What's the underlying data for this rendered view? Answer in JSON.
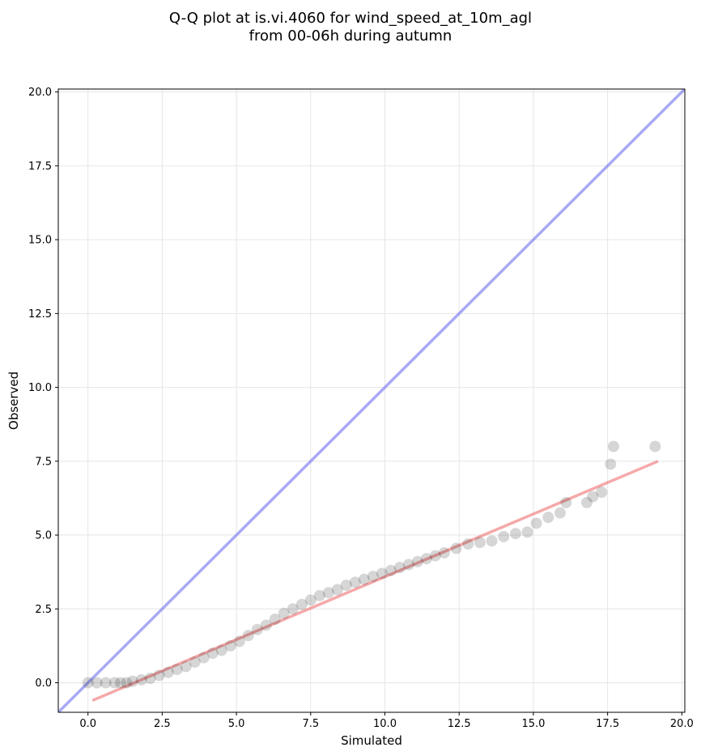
{
  "title_line1": "Q-Q plot at is.vi.4060 for wind_speed_at_10m_agl",
  "title_line2": "from 00-06h during autumn",
  "chart_data": {
    "type": "scatter",
    "title": "Q-Q plot at is.vi.4060 for wind_speed_at_10m_agl from 00-06h during autumn",
    "xlabel": "Simulated",
    "ylabel": "Observed",
    "xlim": [
      -1.0,
      20.1
    ],
    "ylim": [
      -1.0,
      20.1
    ],
    "xticks": [
      "0.0",
      "2.5",
      "5.0",
      "7.5",
      "10.0",
      "12.5",
      "15.0",
      "17.5",
      "20.0"
    ],
    "yticks": [
      "0.0",
      "2.5",
      "5.0",
      "7.5",
      "10.0",
      "12.5",
      "15.0",
      "17.5",
      "20.0"
    ],
    "grid": true,
    "colors": {
      "points": "#000000",
      "identity_line": "#6f6fef",
      "fit_line": "#ef6f6f"
    },
    "identity_line": {
      "x": [
        -1.0,
        20.1
      ],
      "y": [
        -1.0,
        20.1
      ]
    },
    "fit_line": {
      "x": [
        0.15,
        19.2
      ],
      "y": [
        -0.6,
        7.5
      ]
    },
    "points": [
      {
        "x": 0.0,
        "y": 0.0
      },
      {
        "x": 0.3,
        "y": 0.0
      },
      {
        "x": 0.6,
        "y": 0.0
      },
      {
        "x": 0.9,
        "y": 0.0
      },
      {
        "x": 1.1,
        "y": 0.0
      },
      {
        "x": 1.3,
        "y": 0.0
      },
      {
        "x": 1.5,
        "y": 0.05
      },
      {
        "x": 1.8,
        "y": 0.1
      },
      {
        "x": 2.1,
        "y": 0.15
      },
      {
        "x": 2.4,
        "y": 0.25
      },
      {
        "x": 2.7,
        "y": 0.35
      },
      {
        "x": 3.0,
        "y": 0.45
      },
      {
        "x": 3.3,
        "y": 0.55
      },
      {
        "x": 3.6,
        "y": 0.7
      },
      {
        "x": 3.9,
        "y": 0.85
      },
      {
        "x": 4.2,
        "y": 1.0
      },
      {
        "x": 4.5,
        "y": 1.1
      },
      {
        "x": 4.8,
        "y": 1.25
      },
      {
        "x": 5.1,
        "y": 1.4
      },
      {
        "x": 5.4,
        "y": 1.6
      },
      {
        "x": 5.7,
        "y": 1.8
      },
      {
        "x": 6.0,
        "y": 1.95
      },
      {
        "x": 6.3,
        "y": 2.15
      },
      {
        "x": 6.6,
        "y": 2.35
      },
      {
        "x": 6.9,
        "y": 2.5
      },
      {
        "x": 7.2,
        "y": 2.65
      },
      {
        "x": 7.5,
        "y": 2.8
      },
      {
        "x": 7.8,
        "y": 2.95
      },
      {
        "x": 8.1,
        "y": 3.05
      },
      {
        "x": 8.4,
        "y": 3.15
      },
      {
        "x": 8.7,
        "y": 3.3
      },
      {
        "x": 9.0,
        "y": 3.4
      },
      {
        "x": 9.3,
        "y": 3.5
      },
      {
        "x": 9.6,
        "y": 3.6
      },
      {
        "x": 9.9,
        "y": 3.7
      },
      {
        "x": 10.2,
        "y": 3.8
      },
      {
        "x": 10.5,
        "y": 3.9
      },
      {
        "x": 10.8,
        "y": 4.0
      },
      {
        "x": 11.1,
        "y": 4.1
      },
      {
        "x": 11.4,
        "y": 4.2
      },
      {
        "x": 11.7,
        "y": 4.3
      },
      {
        "x": 12.0,
        "y": 4.4
      },
      {
        "x": 12.4,
        "y": 4.55
      },
      {
        "x": 12.8,
        "y": 4.7
      },
      {
        "x": 13.2,
        "y": 4.75
      },
      {
        "x": 13.6,
        "y": 4.8
      },
      {
        "x": 14.0,
        "y": 4.95
      },
      {
        "x": 14.4,
        "y": 5.05
      },
      {
        "x": 14.8,
        "y": 5.1
      },
      {
        "x": 15.1,
        "y": 5.4
      },
      {
        "x": 15.5,
        "y": 5.6
      },
      {
        "x": 15.9,
        "y": 5.75
      },
      {
        "x": 16.1,
        "y": 6.1
      },
      {
        "x": 16.8,
        "y": 6.1
      },
      {
        "x": 17.0,
        "y": 6.3
      },
      {
        "x": 17.3,
        "y": 6.45
      },
      {
        "x": 17.6,
        "y": 7.4
      },
      {
        "x": 17.7,
        "y": 8.0
      },
      {
        "x": 19.1,
        "y": 8.0
      }
    ]
  }
}
